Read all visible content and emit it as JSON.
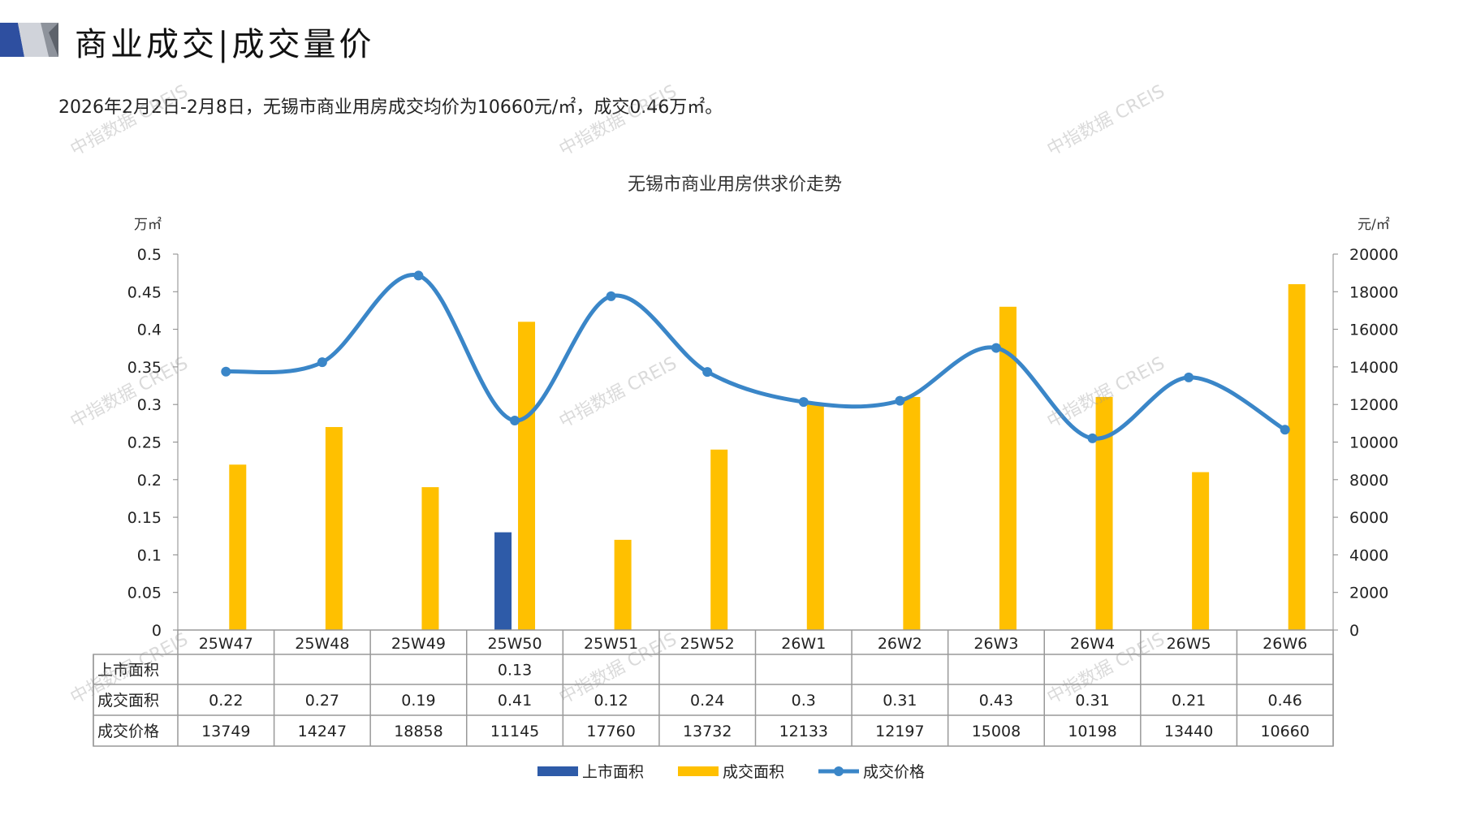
{
  "header": {
    "title": "商业成交|成交量价",
    "subtitle": "2026年2月2日-2月8日，无锡市商业用房成交均价为10660元/㎡，成交0.46万㎡。"
  },
  "watermark": "中指数据 CREIS",
  "colors": {
    "supply": "#2E5BA8",
    "deal_area": "#FFC000",
    "price": "#3A86C8"
  },
  "chart_data": {
    "type": "bar",
    "title": "无锡市商业用房供求价走势",
    "ylabel": "万㎡",
    "y2label": "元/㎡",
    "ylim": [
      0,
      0.5
    ],
    "y2lim": [
      0,
      20000
    ],
    "yticks": [
      "0",
      "0.05",
      "0.1",
      "0.15",
      "0.2",
      "0.25",
      "0.3",
      "0.35",
      "0.4",
      "0.45",
      "0.5"
    ],
    "y2ticks": [
      "0",
      "2000",
      "4000",
      "6000",
      "8000",
      "10000",
      "12000",
      "14000",
      "16000",
      "18000",
      "20000"
    ],
    "categories": [
      "25W47",
      "25W48",
      "25W49",
      "25W50",
      "25W51",
      "25W52",
      "26W1",
      "26W2",
      "26W3",
      "26W4",
      "26W5",
      "26W6"
    ],
    "series": [
      {
        "name": "上市面积",
        "type": "bar",
        "axis": "left",
        "values": [
          null,
          null,
          null,
          0.13,
          null,
          null,
          null,
          null,
          null,
          null,
          null,
          null
        ],
        "labels": [
          "",
          "",
          "",
          "0.13",
          "",
          "",
          "",
          "",
          "",
          "",
          "",
          ""
        ]
      },
      {
        "name": "成交面积",
        "type": "bar",
        "axis": "left",
        "values": [
          0.22,
          0.27,
          0.19,
          0.41,
          0.12,
          0.24,
          0.3,
          0.31,
          0.43,
          0.31,
          0.21,
          0.46
        ],
        "labels": [
          "0.22",
          "0.27",
          "0.19",
          "0.41",
          "0.12",
          "0.24",
          "0.3",
          "0.31",
          "0.43",
          "0.31",
          "0.21",
          "0.46"
        ]
      },
      {
        "name": "成交价格",
        "type": "line",
        "axis": "right",
        "values": [
          13749,
          14247,
          18858,
          11145,
          17760,
          13732,
          12133,
          12197,
          15008,
          10198,
          13440,
          10660
        ],
        "labels": [
          "13749",
          "14247",
          "18858",
          "11145",
          "17760",
          "13732",
          "12133",
          "12197",
          "15008",
          "10198",
          "13440",
          "10660"
        ]
      }
    ],
    "legend": "bottom",
    "data_table": true
  }
}
